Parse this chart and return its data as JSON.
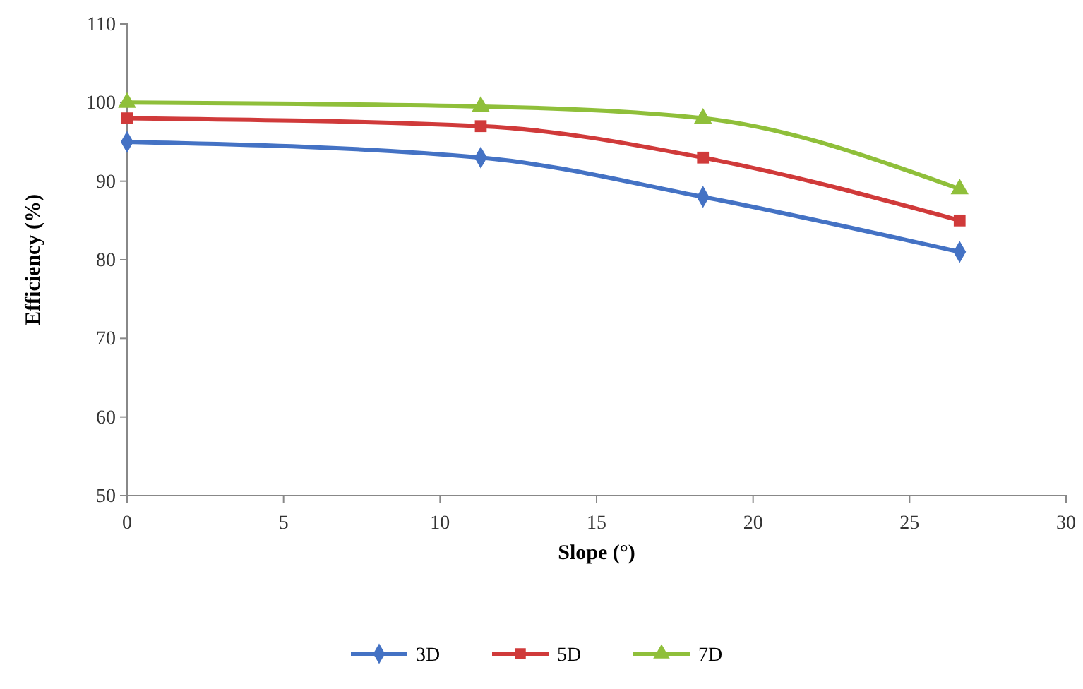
{
  "chart_data": {
    "type": "line",
    "xlabel": "Slope (°)",
    "ylabel": "Efficiency (%)",
    "x": [
      0,
      11.3,
      18.4,
      26.6
    ],
    "series": [
      {
        "name": "3D",
        "color": "#4472c4",
        "values": [
          95,
          93,
          88,
          81
        ],
        "marker": "diamond"
      },
      {
        "name": "5D",
        "color": "#d03a3a",
        "values": [
          98,
          97,
          93,
          85
        ],
        "marker": "square"
      },
      {
        "name": "7D",
        "color": "#8fbf3a",
        "values": [
          100,
          99.5,
          98,
          89
        ],
        "marker": "triangle"
      }
    ],
    "xlim": [
      0,
      30
    ],
    "xticks": [
      0,
      5,
      10,
      15,
      20,
      25,
      30
    ],
    "ylim": [
      50,
      110
    ],
    "yticks": [
      50,
      60,
      70,
      80,
      90,
      100,
      110
    ],
    "grid": false,
    "legend": "bottom",
    "line_style": "solid"
  }
}
